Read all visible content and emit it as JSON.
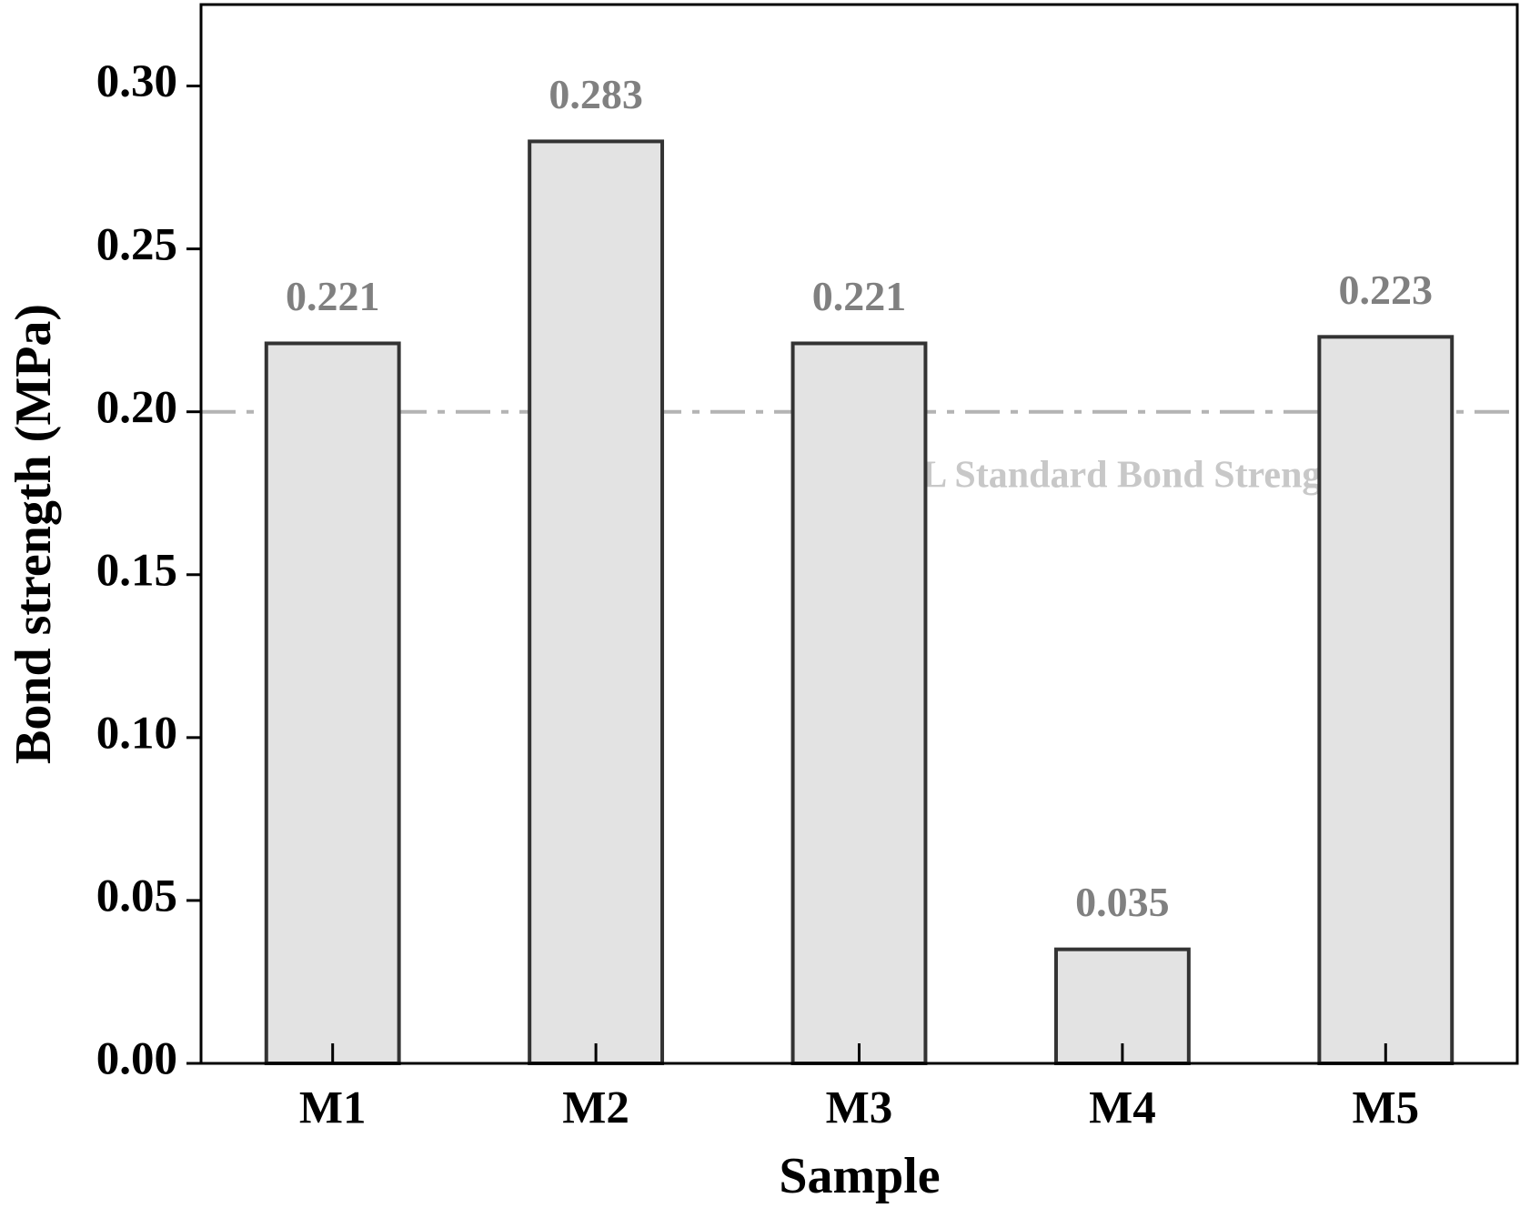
{
  "chart_data": {
    "type": "bar",
    "x_label": "Sample",
    "y_label": "Bond strength (MPa)",
    "categories": [
      "M1",
      "M2",
      "M3",
      "M4",
      "M5"
    ],
    "values": [
      0.221,
      0.283,
      0.221,
      0.035,
      0.223
    ],
    "color": "#e3e3e3",
    "edge_color": "#333333",
    "ylim": [
      0,
      0.325
    ],
    "yticks": [
      {
        "value": 0,
        "label": "0.00"
      },
      0.05,
      {
        "value": 0.1,
        "label": "0.10"
      },
      0.15,
      {
        "value": 0.2,
        "label": "0.20"
      },
      0.25,
      {
        "value": 0.3,
        "label": "0.30"
      }
    ],
    "grid": false,
    "reference_line": {
      "value": 0.2,
      "label": "NHL Standard Bond Strength",
      "color": "#b4b4b4"
    }
  }
}
